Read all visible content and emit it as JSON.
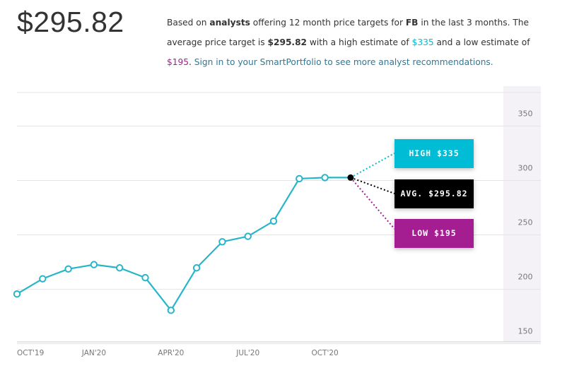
{
  "header": {
    "price": "$295.82",
    "summary": {
      "t1": "Based on ",
      "analysts": "analysts",
      "t2": " offering 12 month price targets for ",
      "ticker": "FB",
      "t3": " in the last 3 months. The average price target is ",
      "avg": "$295.82",
      "t4": " with a high estimate of ",
      "high": "$335",
      "t5": " and a low estimate of ",
      "low": "$195",
      "t6": ". ",
      "link": "Sign in to your SmartPortfolio to see more analyst recommendations."
    }
  },
  "forecast": {
    "high_label": "HIGH $335",
    "avg_label": "AVG. $295.82",
    "low_label": "LOW $195",
    "high_value": 335,
    "avg_value": 295.82,
    "low_value": 195
  },
  "colors": {
    "line": "#26b6c9",
    "high": "#00bcd4",
    "avg": "#000000",
    "low": "#a51e91"
  },
  "chart_data": {
    "type": "line",
    "x_tick_labels": [
      "OCT'19",
      "JAN'20",
      "APR'20",
      "JUL'20",
      "OCT'20"
    ],
    "y_tick_labels": [
      "150",
      "200",
      "250",
      "300",
      "350"
    ],
    "ylim": [
      140,
      375
    ],
    "series": [
      {
        "values": [
          184,
          198,
          207,
          211,
          208,
          199,
          169,
          208,
          232,
          237,
          251,
          290,
          291,
          291
        ]
      }
    ],
    "grid": true
  }
}
